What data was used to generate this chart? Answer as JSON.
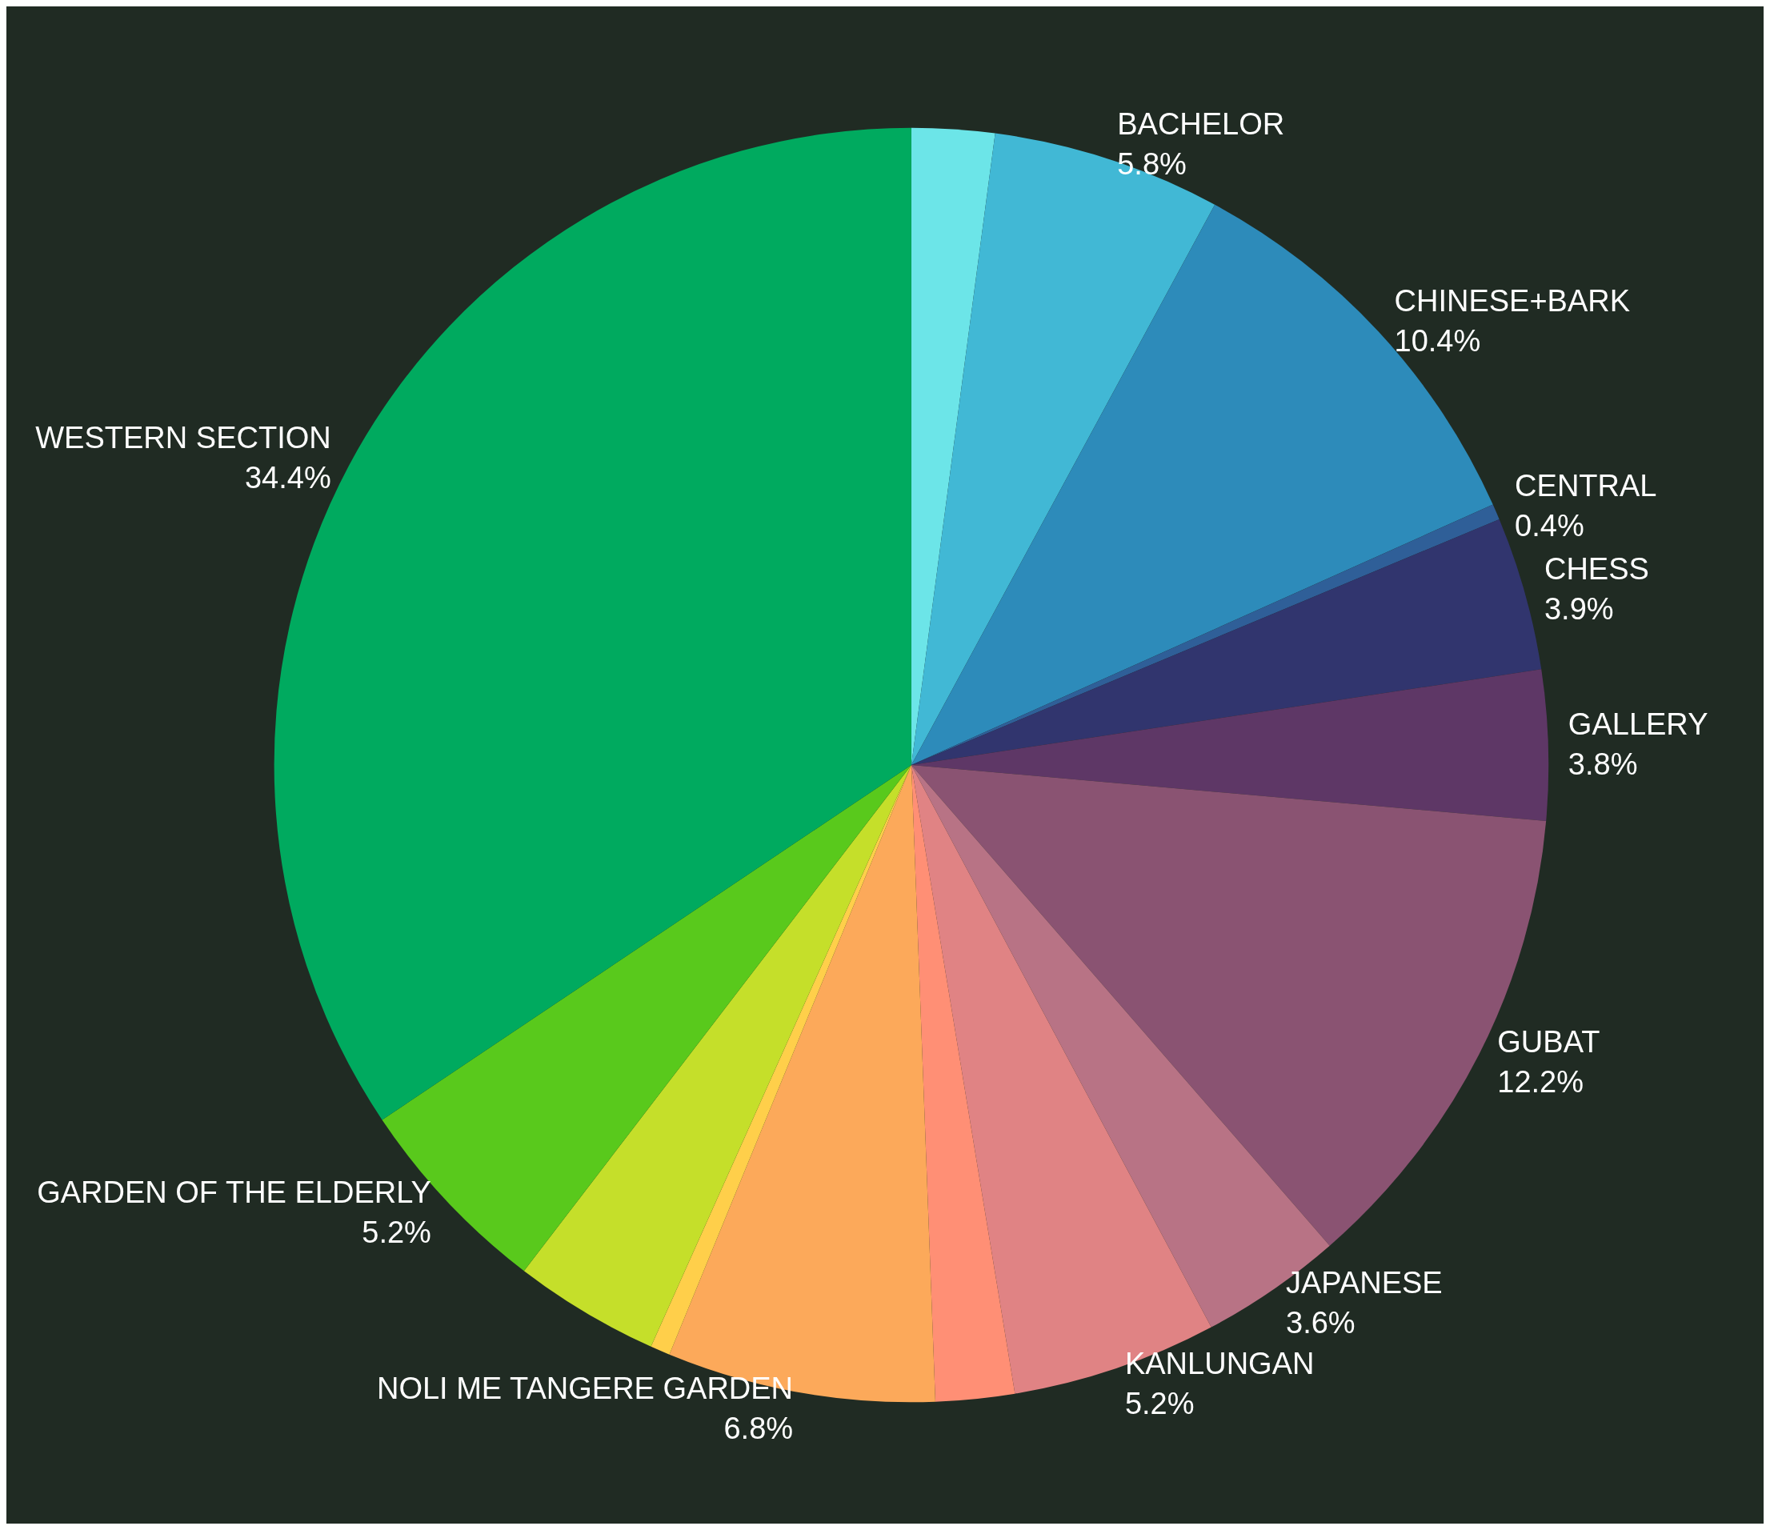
{
  "chart_data": {
    "type": "pie",
    "categories": [
      null,
      "BACHELOR",
      "CHINESE+BARK",
      "CENTRAL",
      "CHESS",
      "GALLERY",
      "GUBAT",
      "JAPANESE",
      "KANLUNGAN",
      null,
      "NOLI ME TANGERE GARDEN",
      null,
      null,
      "GARDEN OF THE ELDERLY",
      "WESTERN SECTION"
    ],
    "values": [
      2.1,
      5.8,
      10.4,
      0.4,
      3.9,
      3.8,
      12.2,
      3.6,
      5.2,
      2.0,
      6.8,
      0.5,
      3.7,
      5.2,
      34.4
    ],
    "value_labels": [
      null,
      "5.8%",
      "10.4%",
      "0.4%",
      "3.9%",
      "3.8%",
      "12.2%",
      "3.6%",
      "5.2%",
      null,
      "6.8%",
      null,
      null,
      "5.2%",
      "34.4%"
    ],
    "colors": [
      "#6ce5e8",
      "#41b8d5",
      "#2d8bba",
      "#2f5f98",
      "#31356e",
      "#5e3766",
      "#8a5372",
      "#b87385",
      "#e08384",
      "#ff8f75",
      "#fca95a",
      "#ffcf4a",
      "#c5df2a",
      "#59c91c",
      "#00aa5f"
    ]
  }
}
